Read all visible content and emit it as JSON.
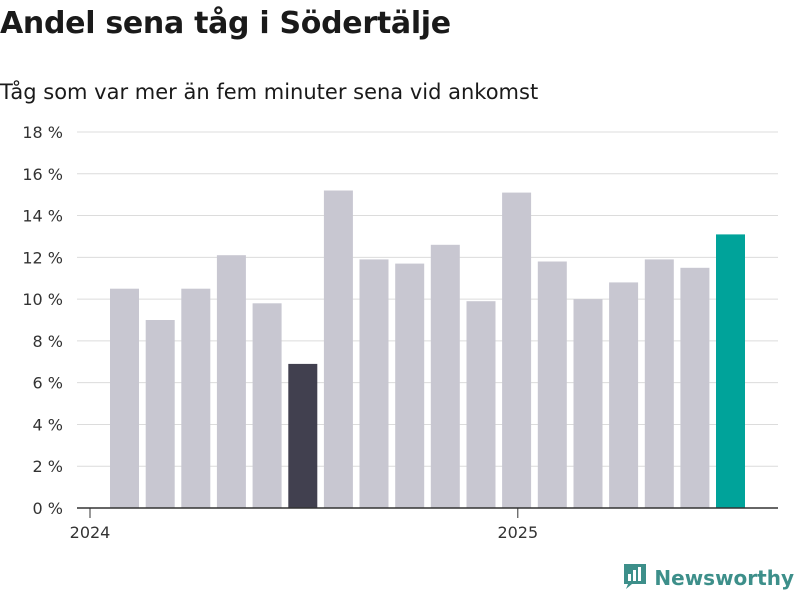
{
  "chart_data": {
    "type": "bar",
    "title": "Andel sena tåg i Södertälje",
    "subtitle": "Tåg som var mer än fem minuter sena vid ankomst",
    "ylim": [
      0,
      18
    ],
    "yticks": [
      0,
      2,
      4,
      6,
      8,
      10,
      12,
      14,
      16,
      18
    ],
    "ytick_labels": [
      "0 %",
      "2 %",
      "4 %",
      "6 %",
      "8 %",
      "10 %",
      "12 %",
      "14 %",
      "16 %",
      "18 %"
    ],
    "x_tick_labels": [
      {
        "label": "2024",
        "at_index": 0
      },
      {
        "label": "2025",
        "at_index": 12
      }
    ],
    "grid": true,
    "series": [
      {
        "values": [
          10.5,
          9.0,
          10.5,
          12.1,
          9.8,
          6.9,
          15.2,
          11.9,
          11.7,
          12.6,
          9.9,
          15.1,
          11.8,
          10.0,
          10.8,
          11.9,
          11.5,
          13.1
        ],
        "colors": [
          "#c8c7d1",
          "#c8c7d1",
          "#c8c7d1",
          "#c8c7d1",
          "#c8c7d1",
          "#41404f",
          "#c8c7d1",
          "#c8c7d1",
          "#c8c7d1",
          "#c8c7d1",
          "#c8c7d1",
          "#c8c7d1",
          "#c8c7d1",
          "#c8c7d1",
          "#c8c7d1",
          "#c8c7d1",
          "#c8c7d1",
          "#00a39a"
        ]
      }
    ]
  },
  "branding": {
    "logo_text": "Newsworthy",
    "logo_color": "#3d8f8a",
    "logo_icon": "newsworthy-bar-chart-icon"
  }
}
